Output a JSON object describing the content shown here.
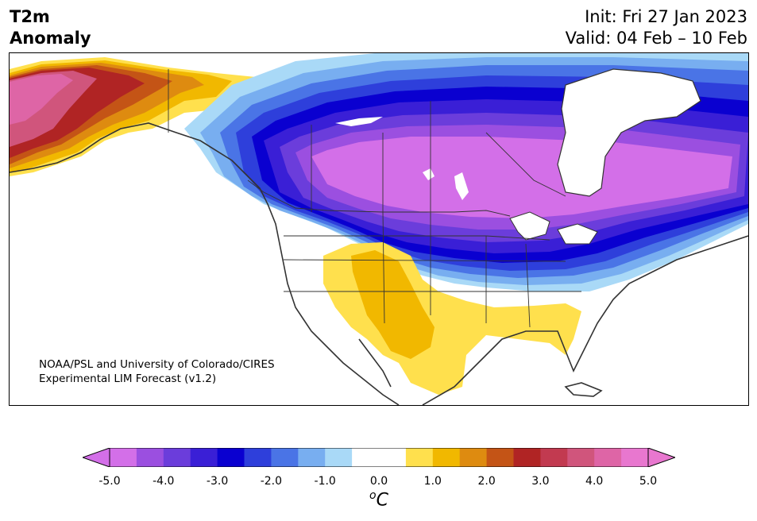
{
  "title": {
    "line1": "T2m",
    "line2": "Anomaly"
  },
  "dates": {
    "init": "Init: Fri 27 Jan 2023",
    "valid": "Valid: 04 Feb – 10 Feb"
  },
  "credit": {
    "line1": "NOAA/PSL and University of Colorado/CIRES",
    "line2": "Experimental LIM Forecast (v1.2)"
  },
  "colorbar": {
    "colors": [
      "#d36fe8",
      "#9b4fe0",
      "#6b3ddb",
      "#3a1fd6",
      "#0a00d0",
      "#2e3fdb",
      "#4a74e6",
      "#78aef0",
      "#a9d9f7",
      "#ffffff",
      "#ffffff",
      "#ffe04d",
      "#f1b800",
      "#de8b10",
      "#c45416",
      "#b02424",
      "#c23a50",
      "#d0557c",
      "#de65a6",
      "#e877cf"
    ],
    "under_color": "#d36fe8",
    "over_color": "#e877cf",
    "ticks": [
      "-5.0",
      "-4.0",
      "-3.0",
      "-2.0",
      "-1.0",
      "0.0",
      "1.0",
      "2.0",
      "3.0",
      "4.0",
      "5.0"
    ],
    "unit_base": "o",
    "unit_letter": "C"
  }
}
